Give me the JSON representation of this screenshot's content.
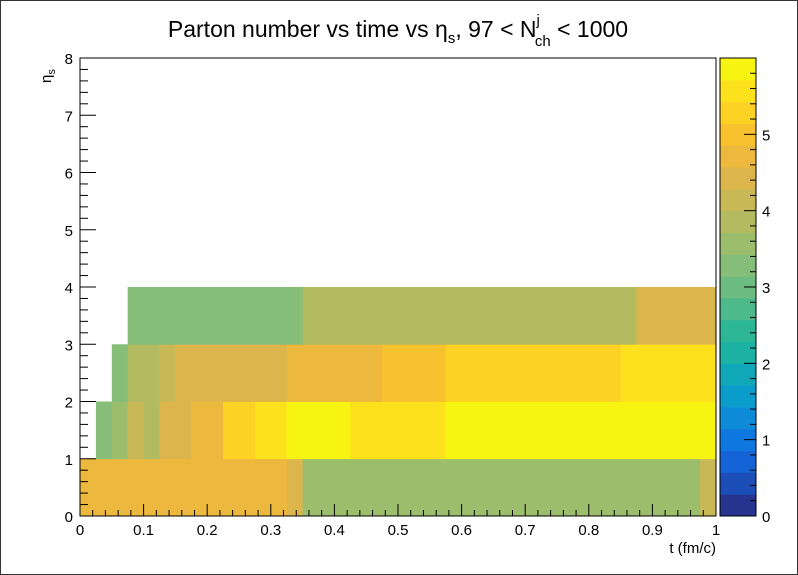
{
  "chart_data": {
    "type": "heatmap",
    "title": {
      "main": "Parton number vs time vs η",
      "main_sub": "s",
      "cut_prefix": ", 97 < N",
      "cut_sup": "j",
      "cut_sub": "ch",
      "cut_suffix": " < 1000"
    },
    "xlabel": "t (fm/c)",
    "ylabel": "η",
    "ylabel_sub": "s",
    "xlim": [
      0,
      1
    ],
    "ylim": [
      0,
      8
    ],
    "zlim": [
      0,
      6
    ],
    "x_ticks": [
      "0",
      "0.1",
      "0.2",
      "0.3",
      "0.4",
      "0.5",
      "0.6",
      "0.7",
      "0.8",
      "0.9",
      "1"
    ],
    "y_ticks": [
      "0",
      "1",
      "2",
      "3",
      "4",
      "5",
      "6",
      "7",
      "8"
    ],
    "z_ticks": [
      "0",
      "1",
      "2",
      "3",
      "4",
      "5"
    ],
    "cells": [
      {
        "x0": 0.0,
        "x1": 0.325,
        "y0": 0,
        "y1": 1,
        "z": 4.6
      },
      {
        "x0": 0.325,
        "x1": 0.35,
        "y0": 0,
        "y1": 1,
        "z": 4.3
      },
      {
        "x0": 0.35,
        "x1": 0.975,
        "y0": 0,
        "y1": 1,
        "z": 3.7
      },
      {
        "x0": 0.975,
        "x1": 1.0,
        "y0": 0,
        "y1": 1,
        "z": 4.1
      },
      {
        "x0": 0.025,
        "x1": 0.05,
        "y0": 1,
        "y1": 2,
        "z": 3.3
      },
      {
        "x0": 0.05,
        "x1": 0.075,
        "y0": 1,
        "y1": 2,
        "z": 3.6
      },
      {
        "x0": 0.075,
        "x1": 0.1,
        "y0": 1,
        "y1": 2,
        "z": 4.0
      },
      {
        "x0": 0.1,
        "x1": 0.125,
        "y0": 1,
        "y1": 2,
        "z": 3.8
      },
      {
        "x0": 0.125,
        "x1": 0.175,
        "y0": 1,
        "y1": 2,
        "z": 4.3
      },
      {
        "x0": 0.175,
        "x1": 0.225,
        "y0": 1,
        "y1": 2,
        "z": 4.6
      },
      {
        "x0": 0.225,
        "x1": 0.275,
        "y0": 1,
        "y1": 2,
        "z": 5.2
      },
      {
        "x0": 0.275,
        "x1": 0.325,
        "y0": 1,
        "y1": 2,
        "z": 5.5
      },
      {
        "x0": 0.325,
        "x1": 0.4,
        "y0": 1,
        "y1": 2,
        "z": 5.8
      },
      {
        "x0": 0.4,
        "x1": 0.425,
        "y0": 1,
        "y1": 2,
        "z": 6.0
      },
      {
        "x0": 0.425,
        "x1": 0.575,
        "y0": 1,
        "y1": 2,
        "z": 5.7
      },
      {
        "x0": 0.575,
        "x1": 1.0,
        "y0": 1,
        "y1": 2,
        "z": 6.0
      },
      {
        "x0": 0.05,
        "x1": 0.075,
        "y0": 2,
        "y1": 3,
        "z": 3.4
      },
      {
        "x0": 0.075,
        "x1": 0.125,
        "y0": 2,
        "y1": 3,
        "z": 3.8
      },
      {
        "x0": 0.125,
        "x1": 0.15,
        "y0": 2,
        "y1": 3,
        "z": 4.0
      },
      {
        "x0": 0.15,
        "x1": 0.325,
        "y0": 2,
        "y1": 3,
        "z": 4.5
      },
      {
        "x0": 0.325,
        "x1": 0.475,
        "y0": 2,
        "y1": 3,
        "z": 4.7
      },
      {
        "x0": 0.475,
        "x1": 0.575,
        "y0": 2,
        "y1": 3,
        "z": 5.0
      },
      {
        "x0": 0.575,
        "x1": 0.85,
        "y0": 2,
        "y1": 3,
        "z": 5.4
      },
      {
        "x0": 0.85,
        "x1": 1.0,
        "y0": 2,
        "y1": 3,
        "z": 5.7
      },
      {
        "x0": 0.075,
        "x1": 0.35,
        "y0": 3,
        "y1": 4,
        "z": 3.3
      },
      {
        "x0": 0.35,
        "x1": 0.875,
        "y0": 3,
        "y1": 4,
        "z": 3.8
      },
      {
        "x0": 0.875,
        "x1": 1.0,
        "y0": 3,
        "y1": 4,
        "z": 4.3
      }
    ],
    "palette": [
      "#26348f",
      "#1c4eb7",
      "#1463d7",
      "#0f78e0",
      "#0d8bd8",
      "#0a9dcc",
      "#10a8b8",
      "#1cb2a4",
      "#2db696",
      "#4dba8b",
      "#6dbc82",
      "#86bd78",
      "#9cbd6c",
      "#b2bb60",
      "#c8b956",
      "#dcb64c",
      "#ecb83e",
      "#f8c12e",
      "#fcd224",
      "#fbe21d",
      "#f8f412"
    ],
    "colors": {
      "frame": "#000000"
    }
  }
}
